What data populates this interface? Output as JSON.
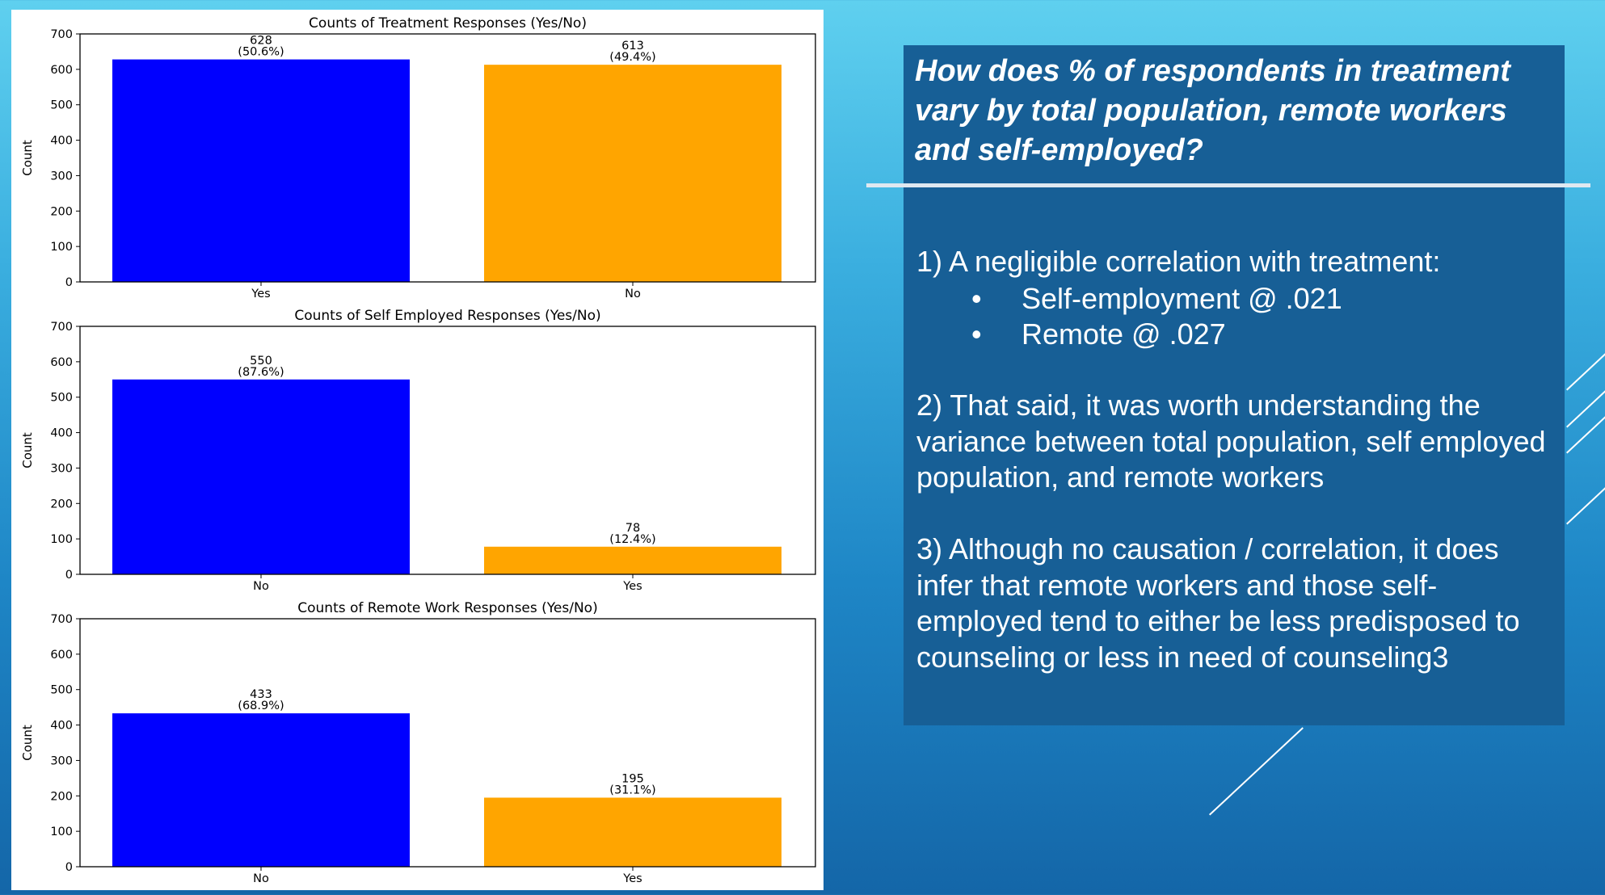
{
  "chart_data": [
    {
      "type": "bar",
      "title": "Counts of Treatment Responses (Yes/No)",
      "ylabel": "Count",
      "categories": [
        "Yes",
        "No"
      ],
      "values": [
        628,
        613
      ],
      "labels": [
        "628",
        "613"
      ],
      "percent_labels": [
        "(50.6%)",
        "(49.4%)"
      ],
      "colors": [
        "#0000ff",
        "#ffa500"
      ],
      "ylim": [
        0,
        700
      ],
      "yticks": [
        "0",
        "100",
        "200",
        "300",
        "400",
        "500",
        "600",
        "700"
      ]
    },
    {
      "type": "bar",
      "title": "Counts of Self Employed Responses (Yes/No)",
      "ylabel": "Count",
      "categories": [
        "No",
        "Yes"
      ],
      "values": [
        550,
        78
      ],
      "labels": [
        "550",
        "78"
      ],
      "percent_labels": [
        "(87.6%)",
        "(12.4%)"
      ],
      "colors": [
        "#0000ff",
        "#ffa500"
      ],
      "ylim": [
        0,
        700
      ],
      "yticks": [
        "0",
        "100",
        "200",
        "300",
        "400",
        "500",
        "600",
        "700"
      ]
    },
    {
      "type": "bar",
      "title": "Counts of Remote Work Responses (Yes/No)",
      "ylabel": "Count",
      "categories": [
        "No",
        "Yes"
      ],
      "values": [
        433,
        195
      ],
      "labels": [
        "433",
        "195"
      ],
      "percent_labels": [
        "(68.9%)",
        "(31.1%)"
      ],
      "colors": [
        "#0000ff",
        "#ffa500"
      ],
      "ylim": [
        0,
        700
      ],
      "yticks": [
        "0",
        "100",
        "200",
        "300",
        "400",
        "500",
        "600",
        "700"
      ]
    }
  ],
  "slide": {
    "heading": "How does % of respondents in treatment vary by total population, remote workers and self-employed?",
    "point1": "1)  A negligible correlation with treatment:",
    "bullet_glyph": "•",
    "bullet1": "Self-employment @ .021",
    "bullet2": "Remote @ .027",
    "point2": "2) That said, it was worth understanding the variance between total population, self employed population, and remote workers",
    "point3": "3) Although no causation / correlation, it does infer that remote workers and those self-employed tend to either be less predisposed to counseling or less in need of counseling3"
  },
  "colors": {
    "panel_bg": "#175f96",
    "text": "#ffffff",
    "bar_primary": "#0000ff",
    "bar_secondary": "#ffa500"
  }
}
